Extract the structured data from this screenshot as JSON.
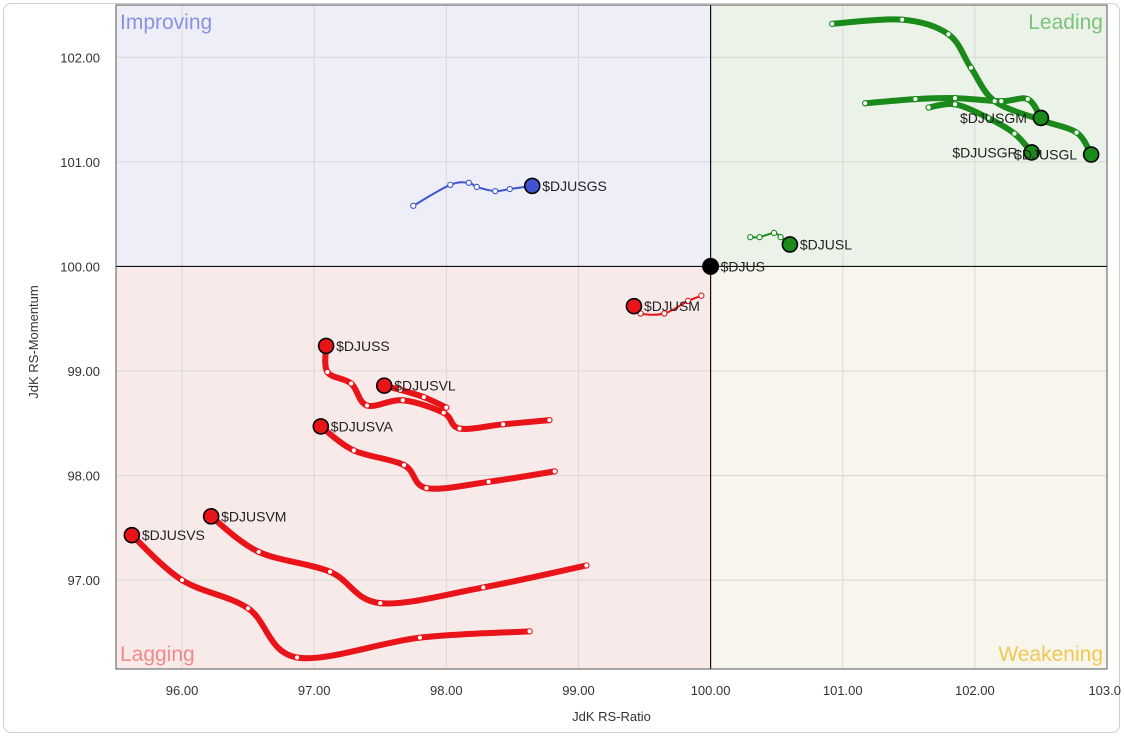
{
  "chart_data": {
    "type": "scatter",
    "subtype": "relative-rotation-graph",
    "xlabel": "JdK RS-Ratio",
    "ylabel": "JdK RS-Momentum",
    "xlim": [
      95.5,
      103.0
    ],
    "ylim": [
      96.15,
      102.5
    ],
    "x_ticks": [
      "96.00",
      "97.00",
      "98.00",
      "99.00",
      "100.00",
      "101.00",
      "102.00",
      "103.0"
    ],
    "x_tick_values": [
      96,
      97,
      98,
      99,
      100,
      101,
      102,
      103
    ],
    "y_ticks": [
      "97.00",
      "98.00",
      "99.00",
      "100.00",
      "101.00",
      "102.00"
    ],
    "y_tick_values": [
      97,
      98,
      99,
      100,
      101,
      102
    ],
    "grid": true,
    "center": [
      100,
      100
    ],
    "quadrants": [
      {
        "name": "Improving",
        "position": "top-left",
        "fill": "#eeeef8",
        "label_color": "#8a92e0"
      },
      {
        "name": "Leading",
        "position": "top-right",
        "fill": "#ebf3e9",
        "label_color": "#7dc27a"
      },
      {
        "name": "Lagging",
        "position": "bottom-left",
        "fill": "#f9eaea",
        "label_color": "#f08a8a"
      },
      {
        "name": "Weakening",
        "position": "bottom-right",
        "fill": "#f8f6ec",
        "label_color": "#efc851"
      }
    ],
    "benchmark": {
      "name": "$DJUS",
      "x": 100.0,
      "y": 100.0,
      "color": "#000000"
    },
    "series": [
      {
        "name": "$DJUSGS",
        "color": "#3e55cf",
        "tail_width": 2,
        "points": [
          [
            97.75,
            100.58
          ],
          [
            98.03,
            100.78
          ],
          [
            98.17,
            100.8
          ],
          [
            98.23,
            100.76
          ],
          [
            98.37,
            100.72
          ],
          [
            98.48,
            100.74
          ],
          [
            98.65,
            100.77
          ]
        ]
      },
      {
        "name": "$DJUSL",
        "color": "#1a8a1a",
        "tail_width": 2,
        "points": [
          [
            100.3,
            100.28
          ],
          [
            100.37,
            100.28
          ],
          [
            100.48,
            100.32
          ],
          [
            100.53,
            100.28
          ],
          [
            100.6,
            100.21
          ]
        ]
      },
      {
        "name": "$DJUSGM",
        "color": "#1a8a1a",
        "tail_width": 6,
        "points": [
          [
            101.17,
            101.56
          ],
          [
            101.55,
            101.6
          ],
          [
            101.85,
            101.61
          ],
          [
            102.2,
            101.58
          ],
          [
            102.4,
            101.6
          ],
          [
            102.5,
            101.42
          ]
        ]
      },
      {
        "name": "$DJUSGR",
        "color": "#1a8a1a",
        "tail_width": 6,
        "points": [
          [
            101.65,
            101.52
          ],
          [
            101.85,
            101.55
          ],
          [
            102.1,
            101.42
          ],
          [
            102.3,
            101.27
          ],
          [
            102.43,
            101.09
          ]
        ]
      },
      {
        "name": "$DJUSGL",
        "color": "#1a8a1a",
        "tail_width": 6,
        "points": [
          [
            100.92,
            102.32
          ],
          [
            101.45,
            102.36
          ],
          [
            101.8,
            102.22
          ],
          [
            101.97,
            101.9
          ],
          [
            102.15,
            101.58
          ],
          [
            102.5,
            101.4
          ],
          [
            102.77,
            101.28
          ],
          [
            102.88,
            101.07
          ]
        ]
      },
      {
        "name": "$DJUSM",
        "color": "#e8141a",
        "tail_width": 2,
        "points": [
          [
            99.93,
            99.72
          ],
          [
            99.83,
            99.67
          ],
          [
            99.65,
            99.55
          ],
          [
            99.47,
            99.55
          ],
          [
            99.42,
            99.62
          ]
        ]
      },
      {
        "name": "$DJUSS",
        "color": "#e8141a",
        "tail_width": 6,
        "points": [
          [
            98.78,
            98.53
          ],
          [
            98.43,
            98.49
          ],
          [
            98.1,
            98.45
          ],
          [
            97.98,
            98.6
          ],
          [
            97.67,
            98.72
          ],
          [
            97.4,
            98.67
          ],
          [
            97.28,
            98.88
          ],
          [
            97.1,
            98.99
          ],
          [
            97.09,
            99.24
          ]
        ]
      },
      {
        "name": "$DJUSVL",
        "color": "#e8141a",
        "tail_width": 6,
        "points": [
          [
            98.0,
            98.65
          ],
          [
            97.83,
            98.75
          ],
          [
            97.65,
            98.82
          ],
          [
            97.53,
            98.86
          ]
        ]
      },
      {
        "name": "$DJUSVA",
        "color": "#e8141a",
        "tail_width": 6,
        "points": [
          [
            98.82,
            98.04
          ],
          [
            98.32,
            97.94
          ],
          [
            97.85,
            97.88
          ],
          [
            97.68,
            98.1
          ],
          [
            97.3,
            98.24
          ],
          [
            97.05,
            98.47
          ]
        ]
      },
      {
        "name": "$DJUSVM",
        "color": "#e8141a",
        "tail_width": 6,
        "points": [
          [
            99.06,
            97.14
          ],
          [
            98.28,
            96.93
          ],
          [
            97.5,
            96.78
          ],
          [
            97.12,
            97.08
          ],
          [
            96.58,
            97.27
          ],
          [
            96.22,
            97.61
          ]
        ]
      },
      {
        "name": "$DJUSVS",
        "color": "#e8141a",
        "tail_width": 6,
        "points": [
          [
            98.63,
            96.51
          ],
          [
            97.8,
            96.45
          ],
          [
            96.87,
            96.26
          ],
          [
            96.5,
            96.73
          ],
          [
            96.0,
            97.0
          ],
          [
            95.62,
            97.43
          ]
        ]
      }
    ]
  },
  "labels": {
    "improving": "Improving",
    "leading": "Leading",
    "lagging": "Lagging",
    "weakening": "Weakening",
    "x_axis": "JdK RS-Ratio",
    "y_axis": "JdK RS-Momentum",
    "benchmark": "$DJUS",
    "DJUSGS": "$DJUSGS",
    "DJUSL": "$DJUSL",
    "DJUSGM": "$DJUSGM",
    "DJUSGR": "$DJUSGR",
    "DJUSGL": "$DJUSGL",
    "DJUSM": "$DJUSM",
    "DJUSS": "$DJUSS",
    "DJUSVL": "$DJUSVL",
    "DJUSVA": "$DJUSVA",
    "DJUSVM": "$DJUSVM",
    "DJUSVS": "$DJUSVS"
  }
}
